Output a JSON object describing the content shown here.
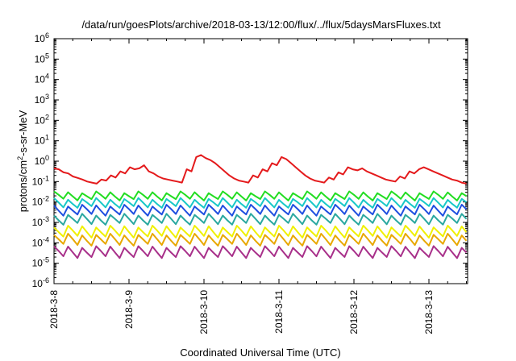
{
  "chart_data": {
    "type": "line",
    "title": "/data/run/goesPlots/archive/2018-03-13/12:00/flux/../flux/5daysMarsFluxes.txt",
    "xlabel": "Coordinated Universal Time (UTC)",
    "ylabel": {
      "prefix": "protons/cm",
      "sup": "2",
      "suffix": "-s-sr-MeV"
    },
    "yscale": "log",
    "ylim_exponent": [
      -6,
      6
    ],
    "y_ticks": [
      {
        "base": "10",
        "exp": "-6"
      },
      {
        "base": "10",
        "exp": "-5"
      },
      {
        "base": "10",
        "exp": "-4"
      },
      {
        "base": "10",
        "exp": "-3"
      },
      {
        "base": "10",
        "exp": "-2"
      },
      {
        "base": "10",
        "exp": "-1"
      },
      {
        "base": "10",
        "exp": "0"
      },
      {
        "base": "10",
        "exp": "1"
      },
      {
        "base": "10",
        "exp": "2"
      },
      {
        "base": "10",
        "exp": "3"
      },
      {
        "base": "10",
        "exp": "4"
      },
      {
        "base": "10",
        "exp": "5"
      },
      {
        "base": "10",
        "exp": "6"
      }
    ],
    "x_range_days": [
      "2018-03-08",
      "2018-03-13 12:00"
    ],
    "x_ticks": [
      "2018-3-8",
      "2018-3-9",
      "2018-3-10",
      "2018-3-11",
      "2018-3-12",
      "2018-3-13"
    ],
    "grid": false,
    "series": [
      {
        "color": "#e41a1c",
        "log_values": [
          -0.35,
          -0.4,
          -0.55,
          -0.6,
          -0.75,
          -0.82,
          -0.9,
          -1.0,
          -1.05,
          -1.1,
          -0.9,
          -0.95,
          -0.7,
          -0.8,
          -0.5,
          -0.6,
          -0.3,
          -0.4,
          -0.35,
          -0.2,
          -0.5,
          -0.6,
          -0.75,
          -0.85,
          -0.9,
          -0.95,
          -1.0,
          -1.05,
          -0.4,
          -0.5,
          0.2,
          0.3,
          0.15,
          0.05,
          -0.1,
          -0.3,
          -0.5,
          -0.7,
          -0.85,
          -0.95,
          -1.0,
          -1.05,
          -0.7,
          -0.8,
          -0.4,
          -0.5,
          -0.1,
          -0.2,
          0.2,
          0.1,
          -0.1,
          -0.3,
          -0.5,
          -0.7,
          -0.85,
          -0.95,
          -1.0,
          -1.05,
          -0.8,
          -0.9,
          -0.55,
          -0.65,
          -0.3,
          -0.4,
          -0.45,
          -0.35,
          -0.5,
          -0.6,
          -0.7,
          -0.8,
          -0.9,
          -0.95,
          -1.0,
          -0.75,
          -0.85,
          -0.5,
          -0.6,
          -0.4,
          -0.3,
          -0.4,
          -0.5,
          -0.6,
          -0.7,
          -0.8,
          -0.9,
          -0.95,
          -1.05,
          -1.1
        ]
      },
      {
        "color": "#22dd22",
        "base": -1.7,
        "amp": 0.35
      },
      {
        "color": "#18c8c8",
        "base": -2.05,
        "amp": 0.4
      },
      {
        "color": "#1f4fe0",
        "base": -2.4,
        "amp": 0.45
      },
      {
        "color": "#2aa8a0",
        "base": -2.85,
        "amp": 0.45
      },
      {
        "color": "#f0f000",
        "base": -3.45,
        "amp": 0.5
      },
      {
        "color": "#e8a800",
        "base": -3.85,
        "amp": 0.5
      },
      {
        "color": "#a8308a",
        "base": -4.45,
        "amp": 0.5
      }
    ]
  }
}
